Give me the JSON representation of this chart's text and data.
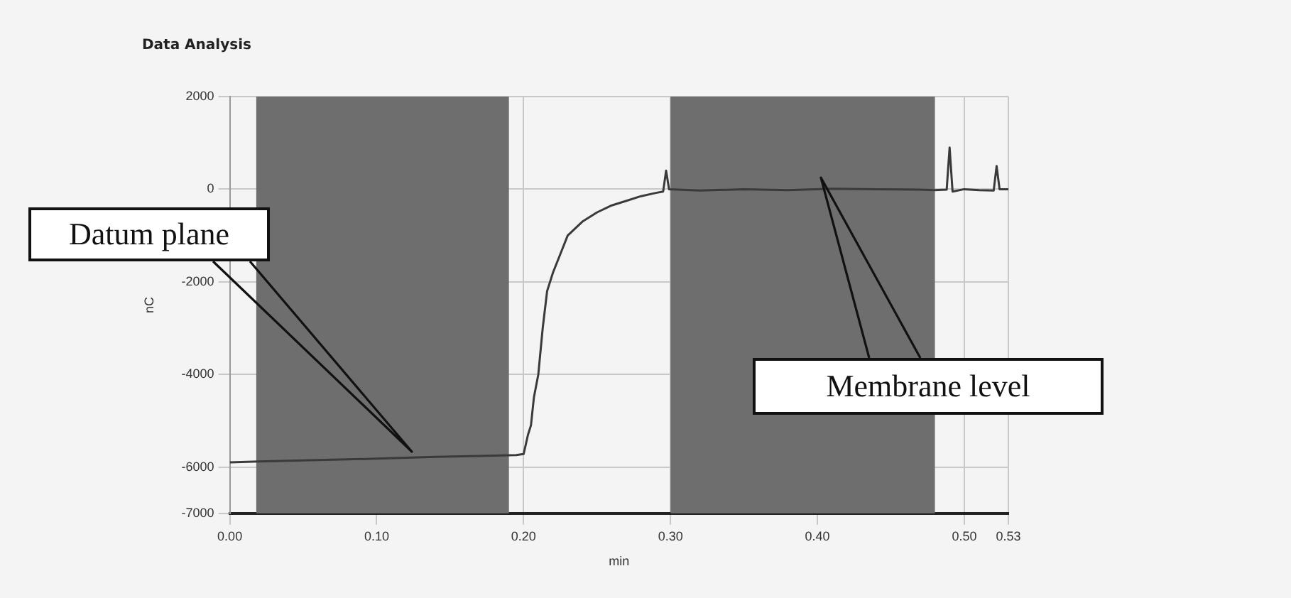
{
  "chart_data": {
    "type": "line",
    "title": "Data Analysis",
    "xlabel": "min",
    "ylabel": "nC",
    "x": [
      0,
      0.02,
      0.06,
      0.1,
      0.14,
      0.17,
      0.195,
      0.2,
      0.203,
      0.205,
      0.207,
      0.21,
      0.213,
      0.216,
      0.22,
      0.225,
      0.23,
      0.24,
      0.25,
      0.26,
      0.27,
      0.28,
      0.29,
      0.295,
      0.297,
      0.299,
      0.32,
      0.35,
      0.38,
      0.41,
      0.44,
      0.47,
      0.48,
      0.488,
      0.49,
      0.492,
      0.5,
      0.51,
      0.52,
      0.522,
      0.524,
      0.53
    ],
    "series": [
      {
        "color": "#3a3a3a",
        "values": [
          -5900,
          -5880,
          -5850,
          -5820,
          -5780,
          -5760,
          -5740,
          -5720,
          -5300,
          -5100,
          -4500,
          -4000,
          -3000,
          -2200,
          -1800,
          -1400,
          -1000,
          -700,
          -500,
          -350,
          -250,
          -150,
          -80,
          -50,
          400,
          0,
          -30,
          0,
          -20,
          10,
          0,
          -10,
          -20,
          -10,
          900,
          -50,
          0,
          -20,
          -30,
          500,
          0,
          0
        ]
      }
    ],
    "xlim": [
      0,
      0.53
    ],
    "xticks": [
      {
        "value": 0,
        "label": "0.00"
      },
      {
        "value": 0.1,
        "label": "0.10"
      },
      {
        "value": 0.2,
        "label": "0.20"
      },
      {
        "value": 0.3,
        "label": "0.30"
      },
      {
        "value": 0.4,
        "label": "0.40"
      },
      {
        "value": 0.5,
        "label": "0.50"
      },
      {
        "value": 0.53,
        "label": "0.53"
      }
    ],
    "ylim": [
      -7000,
      2000
    ],
    "yticks": [
      2000,
      0,
      -2000,
      -4000,
      -6000,
      -7000
    ],
    "bands": [
      {
        "axis": "x",
        "from": 0.018,
        "to": 0.19,
        "color": "#6e6e6e"
      },
      {
        "axis": "x",
        "from": 0.3,
        "to": 0.48,
        "color": "#6e6e6e"
      }
    ],
    "annotations": [
      "Datum plane",
      "Membrane level"
    ],
    "grid": true,
    "legend": false,
    "marker": "none",
    "line_style": "solid"
  }
}
